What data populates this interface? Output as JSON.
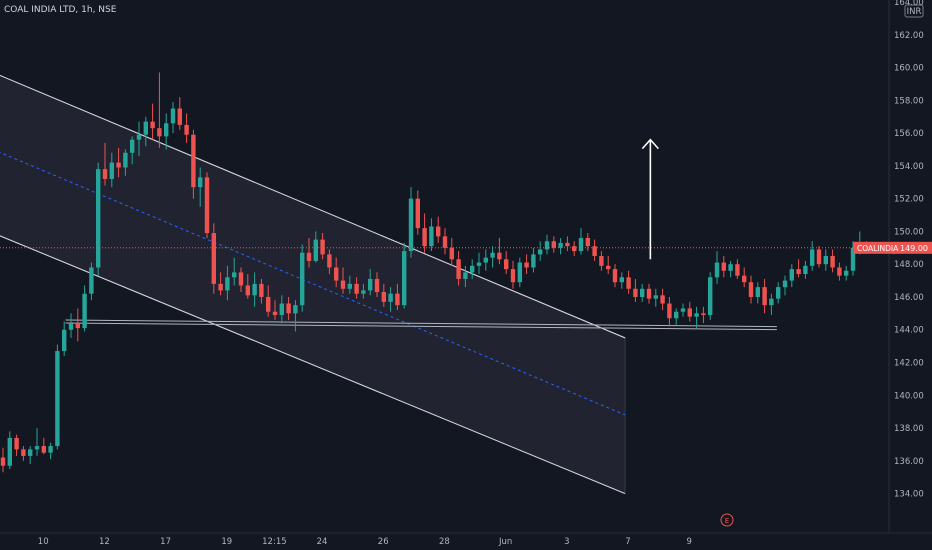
{
  "header": {
    "title": "COAL INDIA LTD, 1h, NSE"
  },
  "currency_badge": "INR",
  "price_label": {
    "symbol": "COALINDIA",
    "price": "149.00",
    "value": 149.0
  },
  "event_marker": "E",
  "colors": {
    "background": "#131722",
    "up": "#26a69a",
    "down": "#ef5350",
    "channel": "#d1d4dc",
    "midline": "#2962ff",
    "price_line": "#ef5350",
    "support": "#b2b5be"
  },
  "chart_data": {
    "type": "candlestick",
    "title": "COAL INDIA LTD, 1h, NSE",
    "ylim": [
      133,
      164
    ],
    "y_ticks": [
      134,
      136,
      138,
      140,
      142,
      144,
      146,
      148,
      150,
      152,
      154,
      156,
      158,
      160,
      162,
      164
    ],
    "y_tick_labels": [
      "134.00",
      "136.00",
      "138.00",
      "140.00",
      "142.00",
      "144.00",
      "146.00",
      "148.00",
      "150.00",
      "152.00",
      "154.00",
      "156.00",
      "158.00",
      "160.00",
      "162.00",
      "164.00"
    ],
    "x_tick_labels": [
      {
        "label": "10",
        "idx": 4
      },
      {
        "label": "12",
        "idx": 13
      },
      {
        "label": "17",
        "idx": 22
      },
      {
        "label": "19",
        "idx": 31
      },
      {
        "label": "12:15",
        "idx": 38
      },
      {
        "label": "24",
        "idx": 45
      },
      {
        "label": "26",
        "idx": 54
      },
      {
        "label": "28",
        "idx": 63
      },
      {
        "label": "Jun",
        "idx": 72
      },
      {
        "label": "3",
        "idx": 81
      },
      {
        "label": "7",
        "idx": 90
      },
      {
        "label": "9",
        "idx": 99
      }
    ],
    "candles": [
      [
        136.2,
        136.8,
        135.3,
        135.7
      ],
      [
        135.7,
        137.8,
        135.5,
        137.4
      ],
      [
        137.4,
        137.6,
        136.3,
        136.7
      ],
      [
        136.7,
        136.9,
        136.0,
        136.3
      ],
      [
        136.3,
        136.9,
        135.8,
        136.7
      ],
      [
        136.7,
        138.0,
        136.3,
        136.9
      ],
      [
        136.9,
        137.4,
        136.4,
        136.5
      ],
      [
        136.5,
        137.1,
        136.1,
        136.9
      ],
      [
        136.9,
        143.1,
        136.7,
        142.7
      ],
      [
        142.7,
        144.5,
        142.4,
        144.0
      ],
      [
        144.0,
        145.0,
        143.5,
        144.4
      ],
      [
        144.4,
        145.3,
        143.3,
        144.1
      ],
      [
        144.1,
        146.7,
        143.9,
        146.2
      ],
      [
        146.2,
        148.1,
        145.8,
        147.8
      ],
      [
        147.8,
        154.2,
        147.3,
        153.8
      ],
      [
        153.8,
        155.4,
        152.8,
        153.2
      ],
      [
        153.2,
        154.8,
        152.7,
        154.2
      ],
      [
        154.2,
        155.1,
        153.3,
        153.9
      ],
      [
        153.9,
        155.0,
        153.4,
        154.8
      ],
      [
        154.8,
        155.8,
        154.1,
        155.6
      ],
      [
        155.6,
        156.7,
        154.6,
        155.9
      ],
      [
        155.9,
        157.0,
        155.2,
        156.7
      ],
      [
        156.7,
        157.8,
        155.6,
        156.3
      ],
      [
        156.3,
        159.7,
        155.1,
        155.8
      ],
      [
        155.8,
        157.2,
        155.0,
        156.6
      ],
      [
        156.6,
        157.9,
        156.0,
        157.5
      ],
      [
        157.5,
        158.2,
        156.2,
        156.5
      ],
      [
        156.5,
        157.2,
        155.4,
        155.9
      ],
      [
        155.9,
        156.2,
        152.0,
        152.7
      ],
      [
        152.7,
        153.9,
        151.5,
        153.3
      ],
      [
        153.3,
        153.6,
        149.6,
        149.9
      ],
      [
        149.9,
        150.5,
        146.2,
        146.8
      ],
      [
        146.8,
        147.5,
        146.1,
        146.4
      ],
      [
        146.4,
        147.9,
        145.8,
        147.2
      ],
      [
        147.2,
        148.4,
        146.7,
        147.5
      ],
      [
        147.5,
        147.8,
        146.3,
        146.7
      ],
      [
        146.7,
        147.4,
        145.9,
        146.1
      ],
      [
        146.1,
        147.5,
        145.4,
        146.8
      ],
      [
        146.8,
        147.1,
        145.6,
        146.0
      ],
      [
        146.0,
        146.7,
        144.8,
        145.1
      ],
      [
        145.1,
        145.8,
        144.6,
        144.9
      ],
      [
        144.9,
        146.1,
        144.4,
        145.6
      ],
      [
        145.6,
        146.0,
        144.6,
        145.0
      ],
      [
        145.0,
        145.8,
        143.9,
        145.5
      ],
      [
        145.5,
        149.2,
        145.1,
        148.7
      ],
      [
        148.7,
        149.6,
        147.8,
        148.2
      ],
      [
        148.2,
        150.0,
        148.1,
        149.5
      ],
      [
        149.5,
        149.9,
        148.3,
        148.6
      ],
      [
        148.6,
        148.9,
        147.4,
        147.8
      ],
      [
        147.8,
        148.4,
        146.6,
        147.0
      ],
      [
        147.0,
        147.8,
        146.2,
        146.5
      ],
      [
        146.5,
        147.3,
        146.2,
        146.8
      ],
      [
        146.8,
        147.2,
        145.9,
        146.2
      ],
      [
        146.2,
        146.8,
        145.9,
        146.4
      ],
      [
        146.4,
        147.7,
        146.1,
        147.1
      ],
      [
        147.1,
        147.5,
        146.0,
        146.3
      ],
      [
        146.3,
        146.8,
        145.4,
        145.7
      ],
      [
        145.7,
        146.6,
        145.1,
        146.2
      ],
      [
        146.2,
        146.8,
        145.2,
        145.5
      ],
      [
        145.5,
        149.3,
        145.3,
        148.8
      ],
      [
        148.8,
        152.7,
        148.4,
        152.0
      ],
      [
        152.0,
        152.5,
        149.8,
        150.2
      ],
      [
        150.2,
        151.1,
        148.7,
        149.1
      ],
      [
        149.1,
        150.8,
        148.8,
        150.3
      ],
      [
        150.3,
        150.9,
        149.3,
        149.7
      ],
      [
        149.7,
        150.2,
        148.6,
        149.0
      ],
      [
        149.0,
        149.6,
        147.9,
        148.3
      ],
      [
        148.3,
        148.8,
        146.7,
        147.1
      ],
      [
        147.1,
        147.9,
        146.6,
        147.5
      ],
      [
        147.5,
        148.3,
        147.1,
        147.9
      ],
      [
        147.9,
        148.7,
        147.4,
        148.1
      ],
      [
        148.1,
        148.9,
        147.6,
        148.4
      ],
      [
        148.4,
        149.1,
        147.8,
        148.7
      ],
      [
        148.7,
        149.6,
        148.0,
        148.3
      ],
      [
        148.3,
        148.8,
        147.4,
        147.7
      ],
      [
        147.7,
        148.2,
        146.5,
        146.9
      ],
      [
        146.9,
        148.4,
        146.6,
        148.1
      ],
      [
        148.1,
        148.6,
        147.4,
        147.8
      ],
      [
        147.8,
        149.0,
        147.5,
        148.6
      ],
      [
        148.6,
        149.4,
        148.2,
        148.9
      ],
      [
        148.9,
        149.8,
        148.6,
        149.4
      ],
      [
        149.4,
        149.7,
        148.7,
        149.0
      ],
      [
        149.0,
        149.6,
        148.6,
        149.3
      ],
      [
        149.3,
        149.7,
        148.8,
        149.1
      ],
      [
        149.1,
        149.4,
        148.5,
        148.8
      ],
      [
        148.8,
        150.2,
        148.6,
        149.6
      ],
      [
        149.6,
        149.9,
        148.8,
        149.1
      ],
      [
        149.1,
        149.5,
        148.2,
        148.5
      ],
      [
        148.5,
        148.8,
        147.6,
        147.9
      ],
      [
        147.9,
        148.5,
        147.4,
        147.7
      ],
      [
        147.7,
        148.0,
        146.6,
        146.9
      ],
      [
        146.9,
        147.5,
        146.5,
        147.2
      ],
      [
        147.2,
        147.6,
        146.2,
        146.5
      ],
      [
        146.5,
        147.1,
        145.7,
        146.0
      ],
      [
        146.0,
        146.8,
        145.7,
        146.5
      ],
      [
        146.5,
        146.8,
        145.6,
        145.9
      ],
      [
        145.9,
        146.5,
        145.4,
        146.1
      ],
      [
        146.1,
        146.5,
        145.2,
        145.6
      ],
      [
        145.6,
        146.0,
        144.2,
        144.7
      ],
      [
        144.7,
        145.3,
        144.3,
        145.1
      ],
      [
        145.1,
        145.6,
        144.8,
        145.3
      ],
      [
        145.3,
        145.7,
        144.5,
        144.8
      ],
      [
        144.8,
        145.4,
        144.1,
        145.0
      ],
      [
        145.0,
        145.4,
        144.4,
        144.9
      ],
      [
        144.9,
        147.5,
        144.6,
        147.2
      ],
      [
        147.2,
        148.8,
        146.8,
        148.1
      ],
      [
        148.1,
        148.5,
        147.2,
        147.6
      ],
      [
        147.6,
        148.2,
        147.2,
        148.0
      ],
      [
        148.0,
        148.3,
        147.1,
        147.3
      ],
      [
        147.3,
        147.8,
        146.6,
        146.9
      ],
      [
        146.9,
        147.3,
        145.6,
        146.0
      ],
      [
        146.0,
        146.9,
        145.6,
        146.6
      ],
      [
        146.6,
        147.1,
        145.0,
        145.5
      ],
      [
        145.5,
        146.2,
        144.9,
        145.9
      ],
      [
        145.9,
        146.9,
        145.6,
        146.6
      ],
      [
        146.6,
        147.3,
        146.1,
        147.0
      ],
      [
        147.0,
        148.0,
        146.6,
        147.7
      ],
      [
        147.7,
        148.3,
        147.2,
        147.4
      ],
      [
        147.4,
        148.2,
        147.1,
        147.9
      ],
      [
        147.9,
        149.4,
        147.6,
        148.9
      ],
      [
        148.9,
        149.1,
        147.8,
        148.0
      ],
      [
        148.0,
        148.9,
        147.6,
        148.5
      ],
      [
        148.5,
        148.9,
        147.5,
        147.8
      ],
      [
        147.8,
        148.1,
        147.0,
        147.3
      ],
      [
        147.3,
        147.9,
        147.0,
        147.6
      ],
      [
        147.6,
        149.4,
        147.3,
        149.0
      ],
      [
        149.0,
        150.0,
        148.6,
        149.2
      ],
      [
        149.2,
        149.4,
        148.7,
        148.9
      ],
      [
        148.9,
        149.3,
        148.8,
        149.1
      ],
      [
        149.1,
        149.3,
        148.7,
        148.9
      ],
      [
        148.9,
        149.2,
        148.8,
        149.0
      ],
      [
        149.0,
        149.3,
        148.6,
        149.0
      ],
      [
        149.0,
        149.2,
        148.8,
        149.0
      ]
    ],
    "channel": {
      "upper": [
        [
          -3.2,
          160.0
        ],
        [
          91.5,
          143.5
        ]
      ],
      "lower": [
        [
          -3.2,
          150.2
        ],
        [
          91.5,
          134.0
        ]
      ],
      "mid": [
        [
          -3.2,
          155.3
        ],
        [
          91.5,
          138.8
        ]
      ]
    },
    "support_line": [
      [
        9.2,
        144.5
      ],
      [
        113.8,
        144.1
      ]
    ],
    "arrow": {
      "x_idx": 95.2,
      "from": 148.3,
      "to": 155.6
    }
  }
}
